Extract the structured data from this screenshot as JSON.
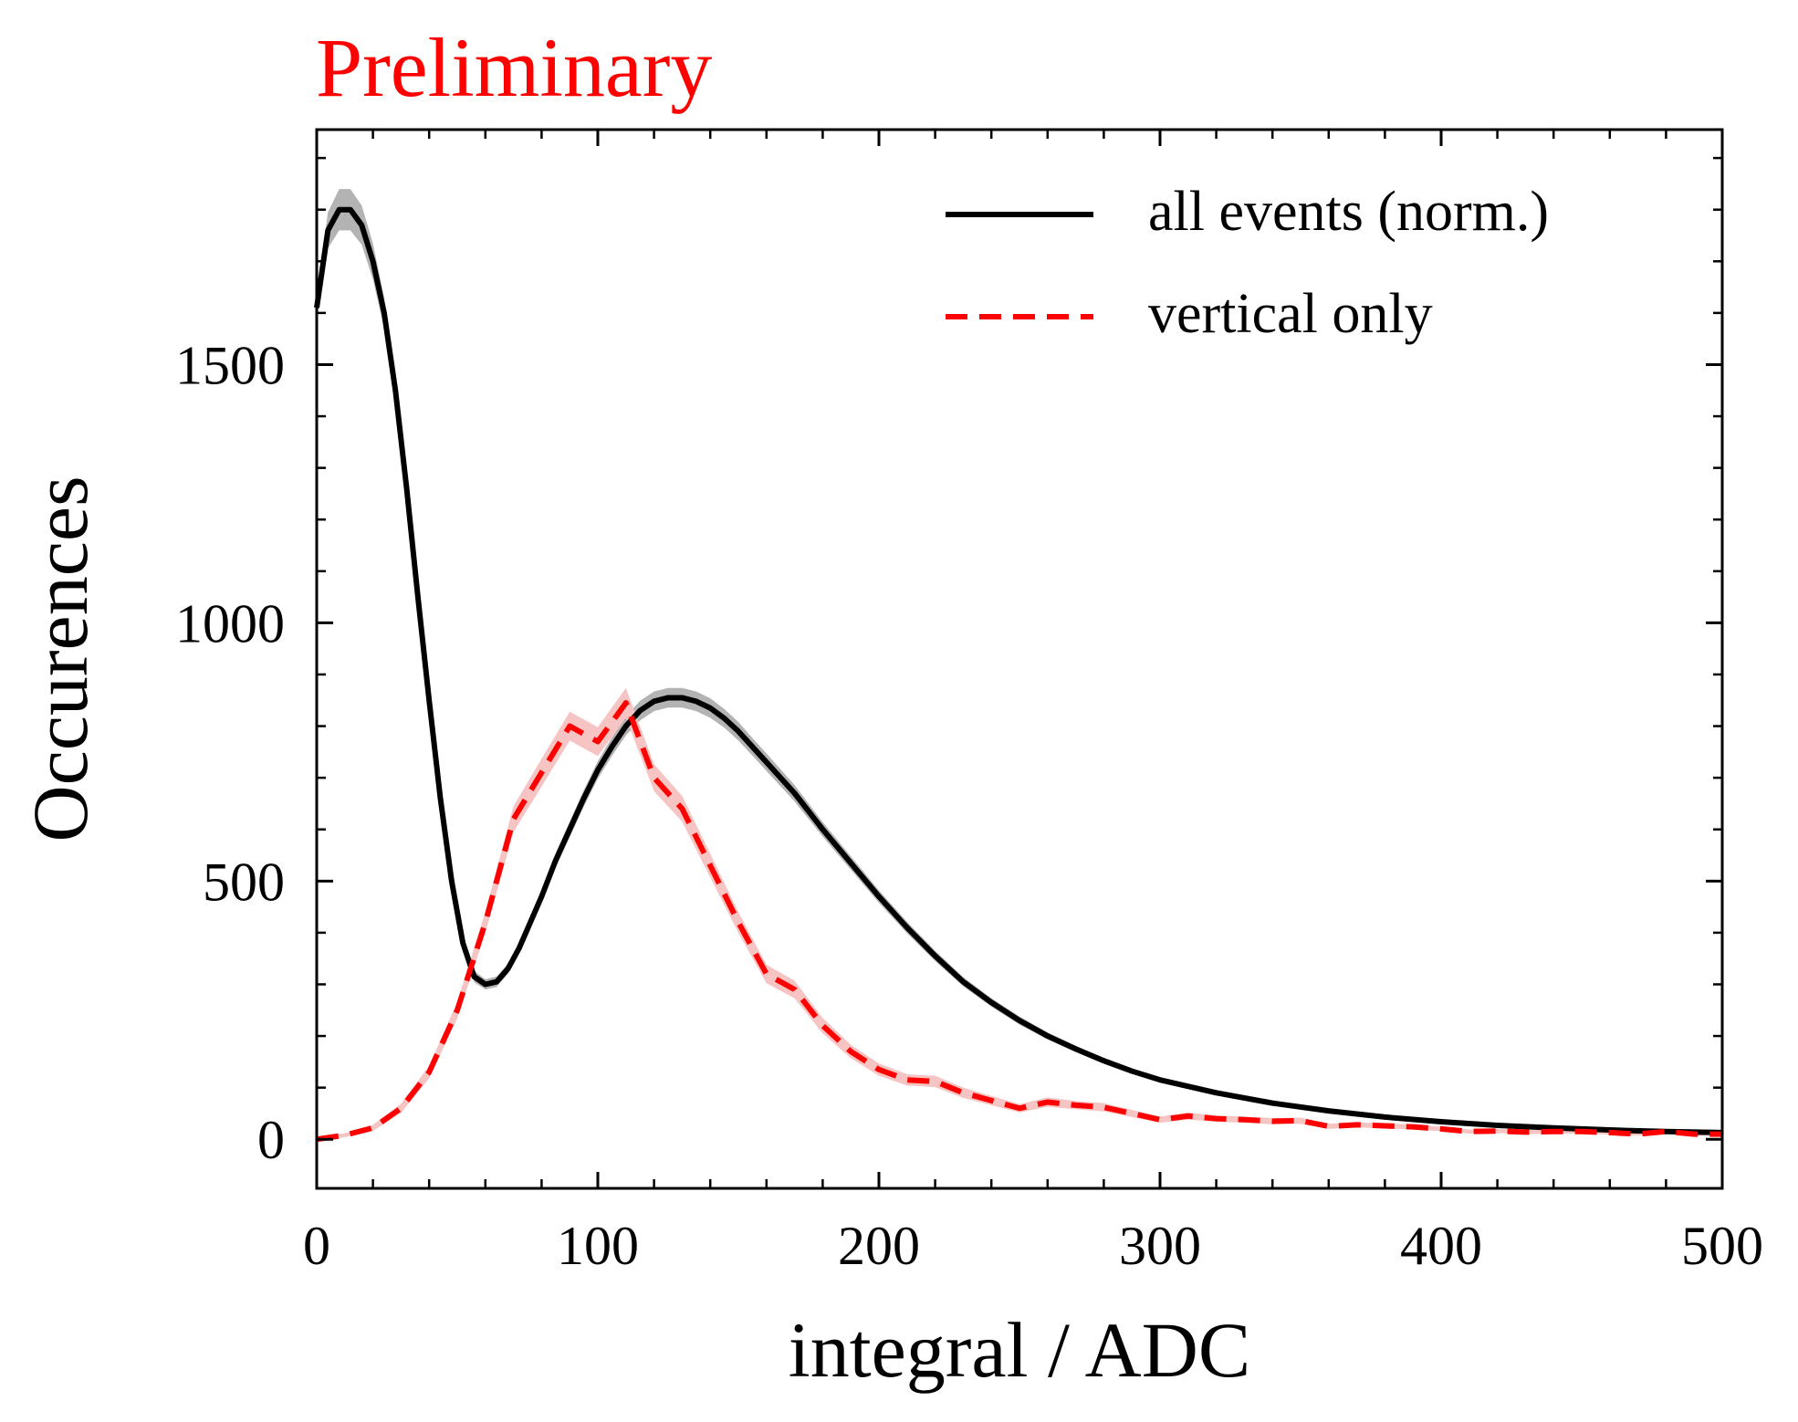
{
  "chart_data": {
    "type": "line",
    "title": "Preliminary",
    "title_color": "#ff0000",
    "xlabel": "integral / ADC",
    "ylabel": "Occurences",
    "xlim": [
      0,
      500
    ],
    "ylim": [
      -95,
      1955
    ],
    "x_ticks": [
      0,
      100,
      200,
      300,
      400,
      500
    ],
    "x_tick_labels": [
      "0",
      "100",
      "200",
      "300",
      "400",
      "500"
    ],
    "y_ticks": [
      0,
      500,
      1000,
      1500
    ],
    "y_tick_labels": [
      "0",
      "500",
      "1000",
      "1500"
    ],
    "grid": false,
    "legend_position": "top-right",
    "series": [
      {
        "name": "all events (norm.)",
        "color": "#000000",
        "band_color": "#b3b3b3",
        "line_style": "solid",
        "x": [
          0,
          4,
          8,
          12,
          16,
          20,
          24,
          28,
          32,
          36,
          40,
          44,
          48,
          52,
          56,
          60,
          64,
          68,
          72,
          76,
          80,
          85,
          90,
          95,
          100,
          105,
          110,
          115,
          120,
          125,
          130,
          135,
          140,
          145,
          150,
          155,
          160,
          170,
          180,
          190,
          200,
          210,
          220,
          230,
          240,
          250,
          260,
          270,
          280,
          290,
          300,
          320,
          340,
          360,
          380,
          400,
          420,
          440,
          460,
          480,
          500
        ],
        "y": [
          1610,
          1760,
          1800,
          1800,
          1770,
          1700,
          1600,
          1450,
          1260,
          1050,
          850,
          660,
          500,
          380,
          315,
          300,
          305,
          330,
          370,
          420,
          470,
          540,
          600,
          660,
          715,
          760,
          800,
          830,
          848,
          855,
          855,
          848,
          835,
          815,
          790,
          760,
          730,
          670,
          600,
          535,
          470,
          410,
          355,
          305,
          265,
          230,
          200,
          175,
          152,
          132,
          115,
          90,
          70,
          55,
          43,
          34,
          27,
          22,
          18,
          15,
          13
        ],
        "err": [
          25,
          35,
          40,
          40,
          38,
          35,
          30,
          25,
          22,
          20,
          18,
          16,
          14,
          12,
          11,
          10,
          10,
          10,
          11,
          12,
          13,
          14,
          15,
          16,
          17,
          18,
          18,
          19,
          19,
          19,
          19,
          19,
          19,
          18,
          18,
          17,
          17,
          16,
          14,
          13,
          12,
          11,
          10,
          9,
          8,
          8,
          7,
          6,
          6,
          5,
          5,
          4,
          4,
          3,
          3,
          3,
          3,
          2,
          2,
          2,
          2
        ]
      },
      {
        "name": "vertical only",
        "color": "#ff0000",
        "band_color": "#f7c4c4",
        "line_style": "dashed",
        "x": [
          0,
          10,
          20,
          30,
          40,
          50,
          60,
          70,
          80,
          90,
          100,
          110,
          120,
          130,
          140,
          150,
          160,
          170,
          180,
          190,
          200,
          210,
          220,
          230,
          240,
          250,
          260,
          270,
          280,
          290,
          300,
          310,
          320,
          330,
          340,
          350,
          360,
          370,
          380,
          390,
          400,
          410,
          420,
          430,
          440,
          450,
          460,
          470,
          480,
          490,
          500
        ],
        "y": [
          0,
          8,
          22,
          60,
          130,
          250,
          420,
          620,
          710,
          800,
          770,
          845,
          700,
          640,
          530,
          420,
          320,
          290,
          220,
          170,
          135,
          115,
          112,
          90,
          75,
          60,
          72,
          66,
          62,
          50,
          38,
          45,
          40,
          38,
          35,
          36,
          25,
          28,
          26,
          24,
          20,
          15,
          16,
          14,
          15,
          15,
          13,
          10,
          15,
          10,
          10
        ],
        "err": [
          3,
          4,
          6,
          9,
          12,
          16,
          20,
          25,
          27,
          28,
          28,
          29,
          26,
          25,
          23,
          20,
          18,
          17,
          15,
          13,
          12,
          11,
          11,
          10,
          9,
          8,
          9,
          8,
          8,
          7,
          6,
          7,
          6,
          6,
          6,
          6,
          5,
          5,
          5,
          5,
          4,
          4,
          4,
          4,
          4,
          4,
          4,
          3,
          4,
          3,
          3
        ]
      }
    ]
  }
}
